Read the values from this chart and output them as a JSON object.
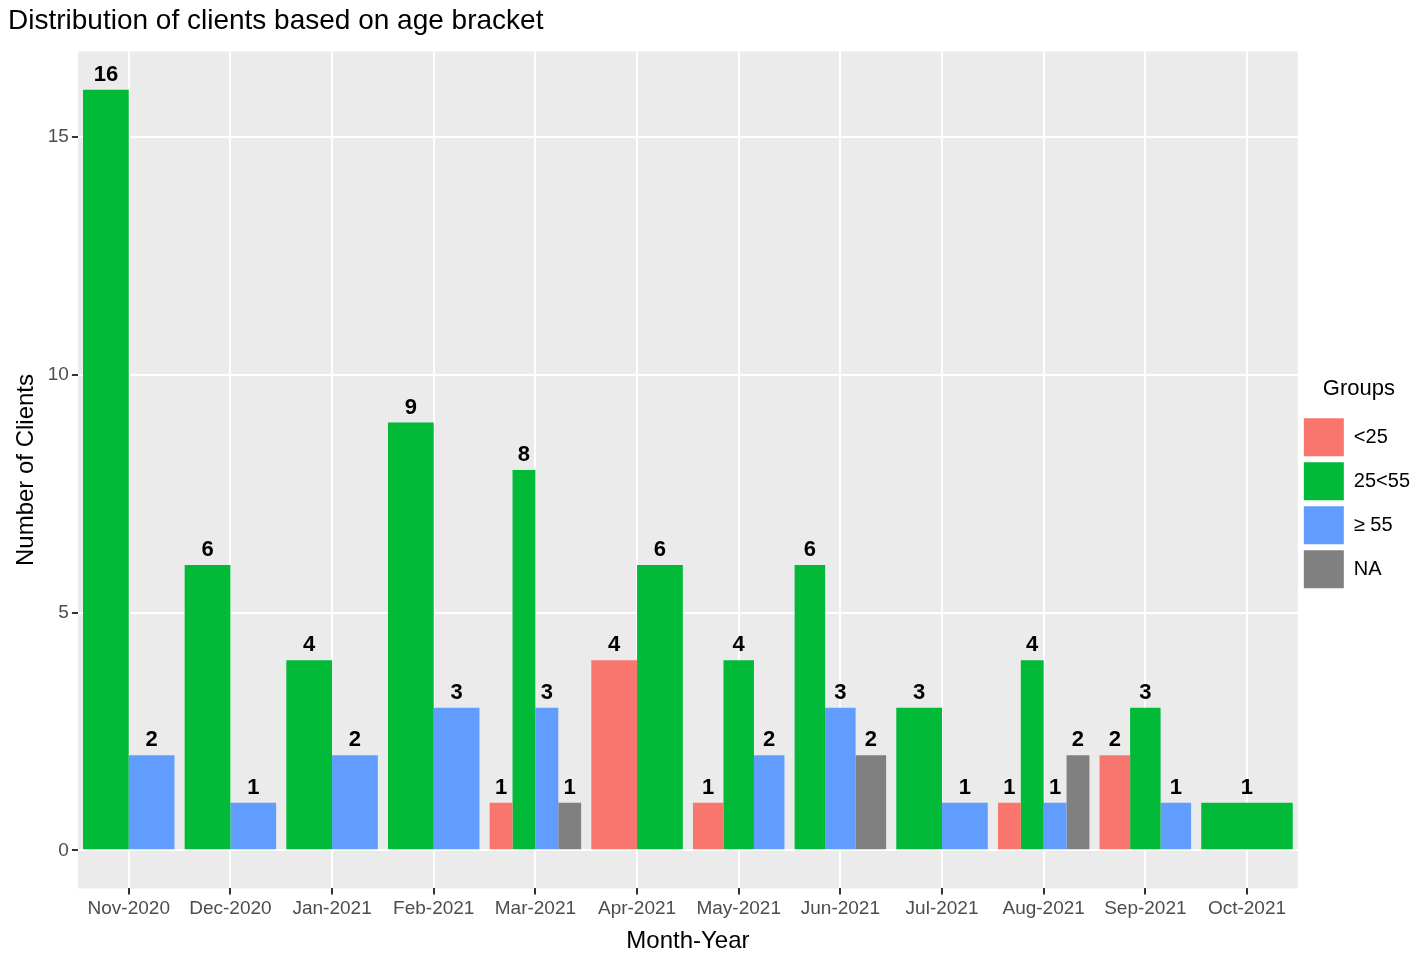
{
  "chart_data": {
    "type": "bar",
    "title": "Distribution of clients based on age bracket",
    "xlabel": "Month-Year",
    "ylabel": "Number of Clients",
    "legend_title": "Groups",
    "categories": [
      "Nov-2020",
      "Dec-2020",
      "Jan-2021",
      "Feb-2021",
      "Mar-2021",
      "Apr-2021",
      "May-2021",
      "Jun-2021",
      "Jul-2021",
      "Aug-2021",
      "Sep-2021",
      "Oct-2021"
    ],
    "series": [
      {
        "name": "<25",
        "color": "#f8766d",
        "values": [
          null,
          null,
          null,
          null,
          1,
          4,
          1,
          null,
          null,
          1,
          2,
          null
        ]
      },
      {
        "name": "25<55",
        "color": "#00ba38",
        "values": [
          16,
          6,
          4,
          9,
          8,
          6,
          4,
          6,
          3,
          4,
          3,
          1
        ]
      },
      {
        "name": "≥ 55",
        "color": "#619cff",
        "values": [
          2,
          1,
          2,
          3,
          3,
          null,
          2,
          3,
          1,
          1,
          1,
          null
        ]
      },
      {
        "name": "NA",
        "color": "#808080",
        "values": [
          null,
          null,
          null,
          null,
          1,
          null,
          null,
          2,
          null,
          2,
          null,
          null
        ]
      }
    ],
    "ylim": [
      -0.8,
      16.8
    ],
    "yticks": [
      0,
      5,
      10,
      15
    ],
    "grid": true,
    "legend": "right",
    "data_labels": true
  }
}
